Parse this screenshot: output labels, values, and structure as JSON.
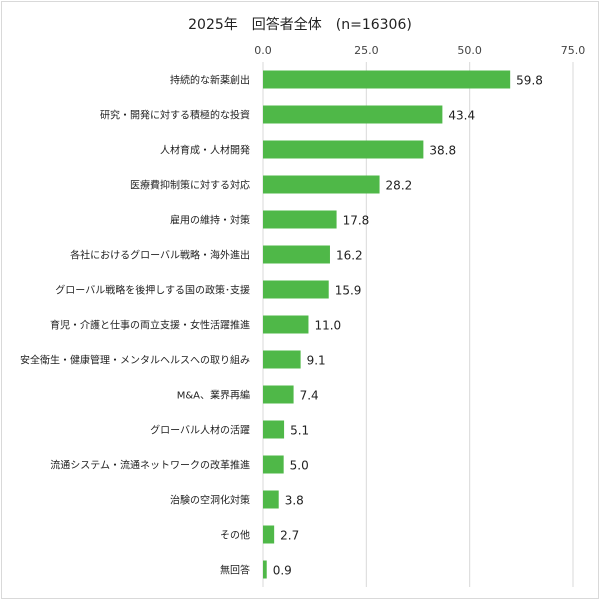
{
  "chart_data": {
    "type": "bar",
    "orientation": "horizontal",
    "title": "2025年　回答者全体　(n=16306)",
    "xlabel": "",
    "ylabel": "",
    "xlim": [
      0,
      75
    ],
    "ticks": [
      0,
      25,
      50,
      75
    ],
    "tick_labels": [
      "0.0",
      "25.0",
      "50.0",
      "75.0"
    ],
    "grid": true,
    "categories": [
      "持続的な新薬創出",
      "研究・開発に対する積極的な投資",
      "人材育成・人材開発",
      "医療費抑制策に対する対応",
      "雇用の維持・対策",
      "各社におけるグローバル戦略・海外進出",
      "グローバル戦略を後押しする国の政策･支援",
      "育児・介護と仕事の両立支援・女性活躍推進",
      "安全衛生・健康管理・メンタルヘルスへの取り組み",
      "M&A、業界再編",
      "グローバル人材の活躍",
      "流通システム・流通ネットワークの改革推進",
      "治験の空洞化対策",
      "その他",
      "無回答"
    ],
    "values": [
      59.8,
      43.4,
      38.8,
      28.2,
      17.8,
      16.2,
      15.9,
      11.0,
      9.1,
      7.4,
      5.1,
      5.0,
      3.8,
      2.7,
      0.9
    ],
    "value_labels": [
      "59.8",
      "43.4",
      "38.8",
      "28.2",
      "17.8",
      "16.2",
      "15.9",
      "11.0",
      "9.1",
      "7.4",
      "5.1",
      "5.0",
      "3.8",
      "2.7",
      "0.9"
    ],
    "bar_color": "#4fb848"
  }
}
